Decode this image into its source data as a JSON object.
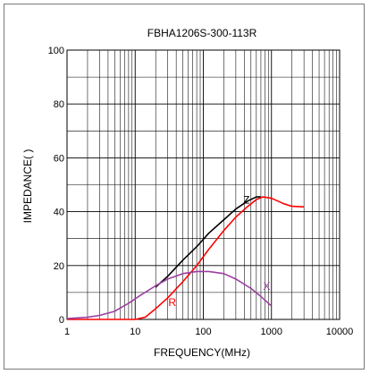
{
  "chart_data": {
    "type": "line",
    "title": "FBHA1206S-300-113R",
    "xlabel": "FREQUENCY(MHz)",
    "ylabel": "IMPEDANCE(  )",
    "x_scale": "log",
    "xlim": [
      1,
      10000
    ],
    "ylim": [
      0,
      100
    ],
    "x_ticks": [
      1,
      10,
      100,
      1000,
      10000
    ],
    "x_tick_labels": [
      "1",
      "10",
      "100",
      "1000",
      "10000"
    ],
    "y_ticks": [
      0,
      20,
      40,
      60,
      80,
      100
    ],
    "y_tick_labels": [
      "0",
      "20",
      "40",
      "60",
      "80",
      "100"
    ],
    "grid": true,
    "legend": "none",
    "series": [
      {
        "name": "Z",
        "color": "#000000",
        "label_at": {
          "x": 430,
          "y": 43
        },
        "points": [
          {
            "x": 20,
            "y": 12
          },
          {
            "x": 30,
            "y": 16
          },
          {
            "x": 50,
            "y": 22
          },
          {
            "x": 80,
            "y": 27
          },
          {
            "x": 120,
            "y": 32
          },
          {
            "x": 200,
            "y": 37
          },
          {
            "x": 300,
            "y": 41
          },
          {
            "x": 450,
            "y": 44
          },
          {
            "x": 600,
            "y": 45.5
          },
          {
            "x": 700,
            "y": 45.5
          }
        ]
      },
      {
        "name": "R",
        "color": "#ff0000",
        "label_at": {
          "x": 35,
          "y": 5
        },
        "points": [
          {
            "x": 1,
            "y": 0
          },
          {
            "x": 10,
            "y": 0
          },
          {
            "x": 14,
            "y": 0.8
          },
          {
            "x": 20,
            "y": 4
          },
          {
            "x": 30,
            "y": 8
          },
          {
            "x": 50,
            "y": 14
          },
          {
            "x": 80,
            "y": 20
          },
          {
            "x": 120,
            "y": 26
          },
          {
            "x": 200,
            "y": 33
          },
          {
            "x": 300,
            "y": 38
          },
          {
            "x": 450,
            "y": 42
          },
          {
            "x": 600,
            "y": 44.5
          },
          {
            "x": 750,
            "y": 45.5
          },
          {
            "x": 1000,
            "y": 45
          },
          {
            "x": 1500,
            "y": 43
          },
          {
            "x": 2000,
            "y": 42
          },
          {
            "x": 3000,
            "y": 41.8
          }
        ]
      },
      {
        "name": "X",
        "color": "#9b3fa0",
        "label_at": {
          "x": 850,
          "y": 11
        },
        "points": [
          {
            "x": 1,
            "y": 0.3
          },
          {
            "x": 2,
            "y": 0.8
          },
          {
            "x": 3,
            "y": 1.5
          },
          {
            "x": 5,
            "y": 3
          },
          {
            "x": 8,
            "y": 6
          },
          {
            "x": 12,
            "y": 9
          },
          {
            "x": 20,
            "y": 12.5
          },
          {
            "x": 30,
            "y": 15
          },
          {
            "x": 50,
            "y": 17
          },
          {
            "x": 80,
            "y": 17.8
          },
          {
            "x": 120,
            "y": 17.8
          },
          {
            "x": 200,
            "y": 17
          },
          {
            "x": 300,
            "y": 15
          },
          {
            "x": 500,
            "y": 11.5
          },
          {
            "x": 700,
            "y": 8.5
          },
          {
            "x": 1000,
            "y": 5
          }
        ]
      }
    ]
  }
}
